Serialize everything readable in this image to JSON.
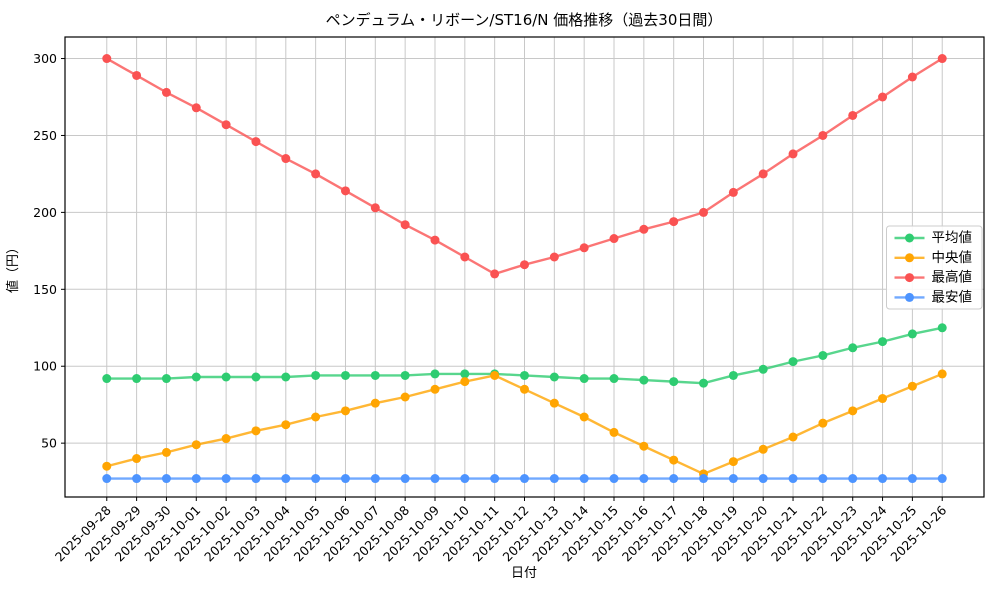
{
  "chart_data": {
    "type": "line",
    "title": "ペンデュラム・リボーン/ST16/N 価格推移（過去30日間）",
    "xlabel": "日付",
    "ylabel": "値（円）",
    "x": [
      "2025-09-28",
      "2025-09-29",
      "2025-09-30",
      "2025-10-01",
      "2025-10-02",
      "2025-10-03",
      "2025-10-04",
      "2025-10-05",
      "2025-10-06",
      "2025-10-07",
      "2025-10-08",
      "2025-10-09",
      "2025-10-10",
      "2025-10-11",
      "2025-10-12",
      "2025-10-13",
      "2025-10-14",
      "2025-10-15",
      "2025-10-16",
      "2025-10-17",
      "2025-10-18",
      "2025-10-19",
      "2025-10-20",
      "2025-10-21",
      "2025-10-22",
      "2025-10-23",
      "2025-10-24",
      "2025-10-25",
      "2025-10-26"
    ],
    "series": [
      {
        "name": "平均値",
        "color": "#2ecc71",
        "values": [
          92,
          92,
          92,
          93,
          93,
          93,
          93,
          94,
          94,
          94,
          94,
          95,
          95,
          95,
          94,
          93,
          92,
          92,
          91,
          90,
          89,
          94,
          98,
          103,
          107,
          112,
          116,
          121,
          125
        ]
      },
      {
        "name": "中央値",
        "color": "#ffa502",
        "values": [
          35,
          40,
          44,
          49,
          53,
          58,
          62,
          67,
          71,
          76,
          80,
          85,
          90,
          94,
          85,
          76,
          67,
          57,
          48,
          39,
          30,
          38,
          46,
          54,
          63,
          71,
          79,
          87,
          95
        ]
      },
      {
        "name": "最高値",
        "color": "#fa5252",
        "values": [
          300,
          289,
          278,
          268,
          257,
          246,
          235,
          225,
          214,
          203,
          192,
          182,
          171,
          160,
          166,
          171,
          177,
          183,
          189,
          194,
          200,
          213,
          225,
          238,
          250,
          263,
          275,
          288,
          300
        ]
      },
      {
        "name": "最安値",
        "color": "#4d94ff",
        "values": [
          27,
          27,
          27,
          27,
          27,
          27,
          27,
          27,
          27,
          27,
          27,
          27,
          27,
          27,
          27,
          27,
          27,
          27,
          27,
          27,
          27,
          27,
          27,
          27,
          27,
          27,
          27,
          27,
          27
        ]
      }
    ],
    "ylim": [
      15,
      314
    ],
    "yticks": [
      50,
      100,
      150,
      200,
      250,
      300
    ],
    "grid": true,
    "grid_color": "#c8c8c8",
    "legend_position": "right",
    "marker": "circle"
  }
}
